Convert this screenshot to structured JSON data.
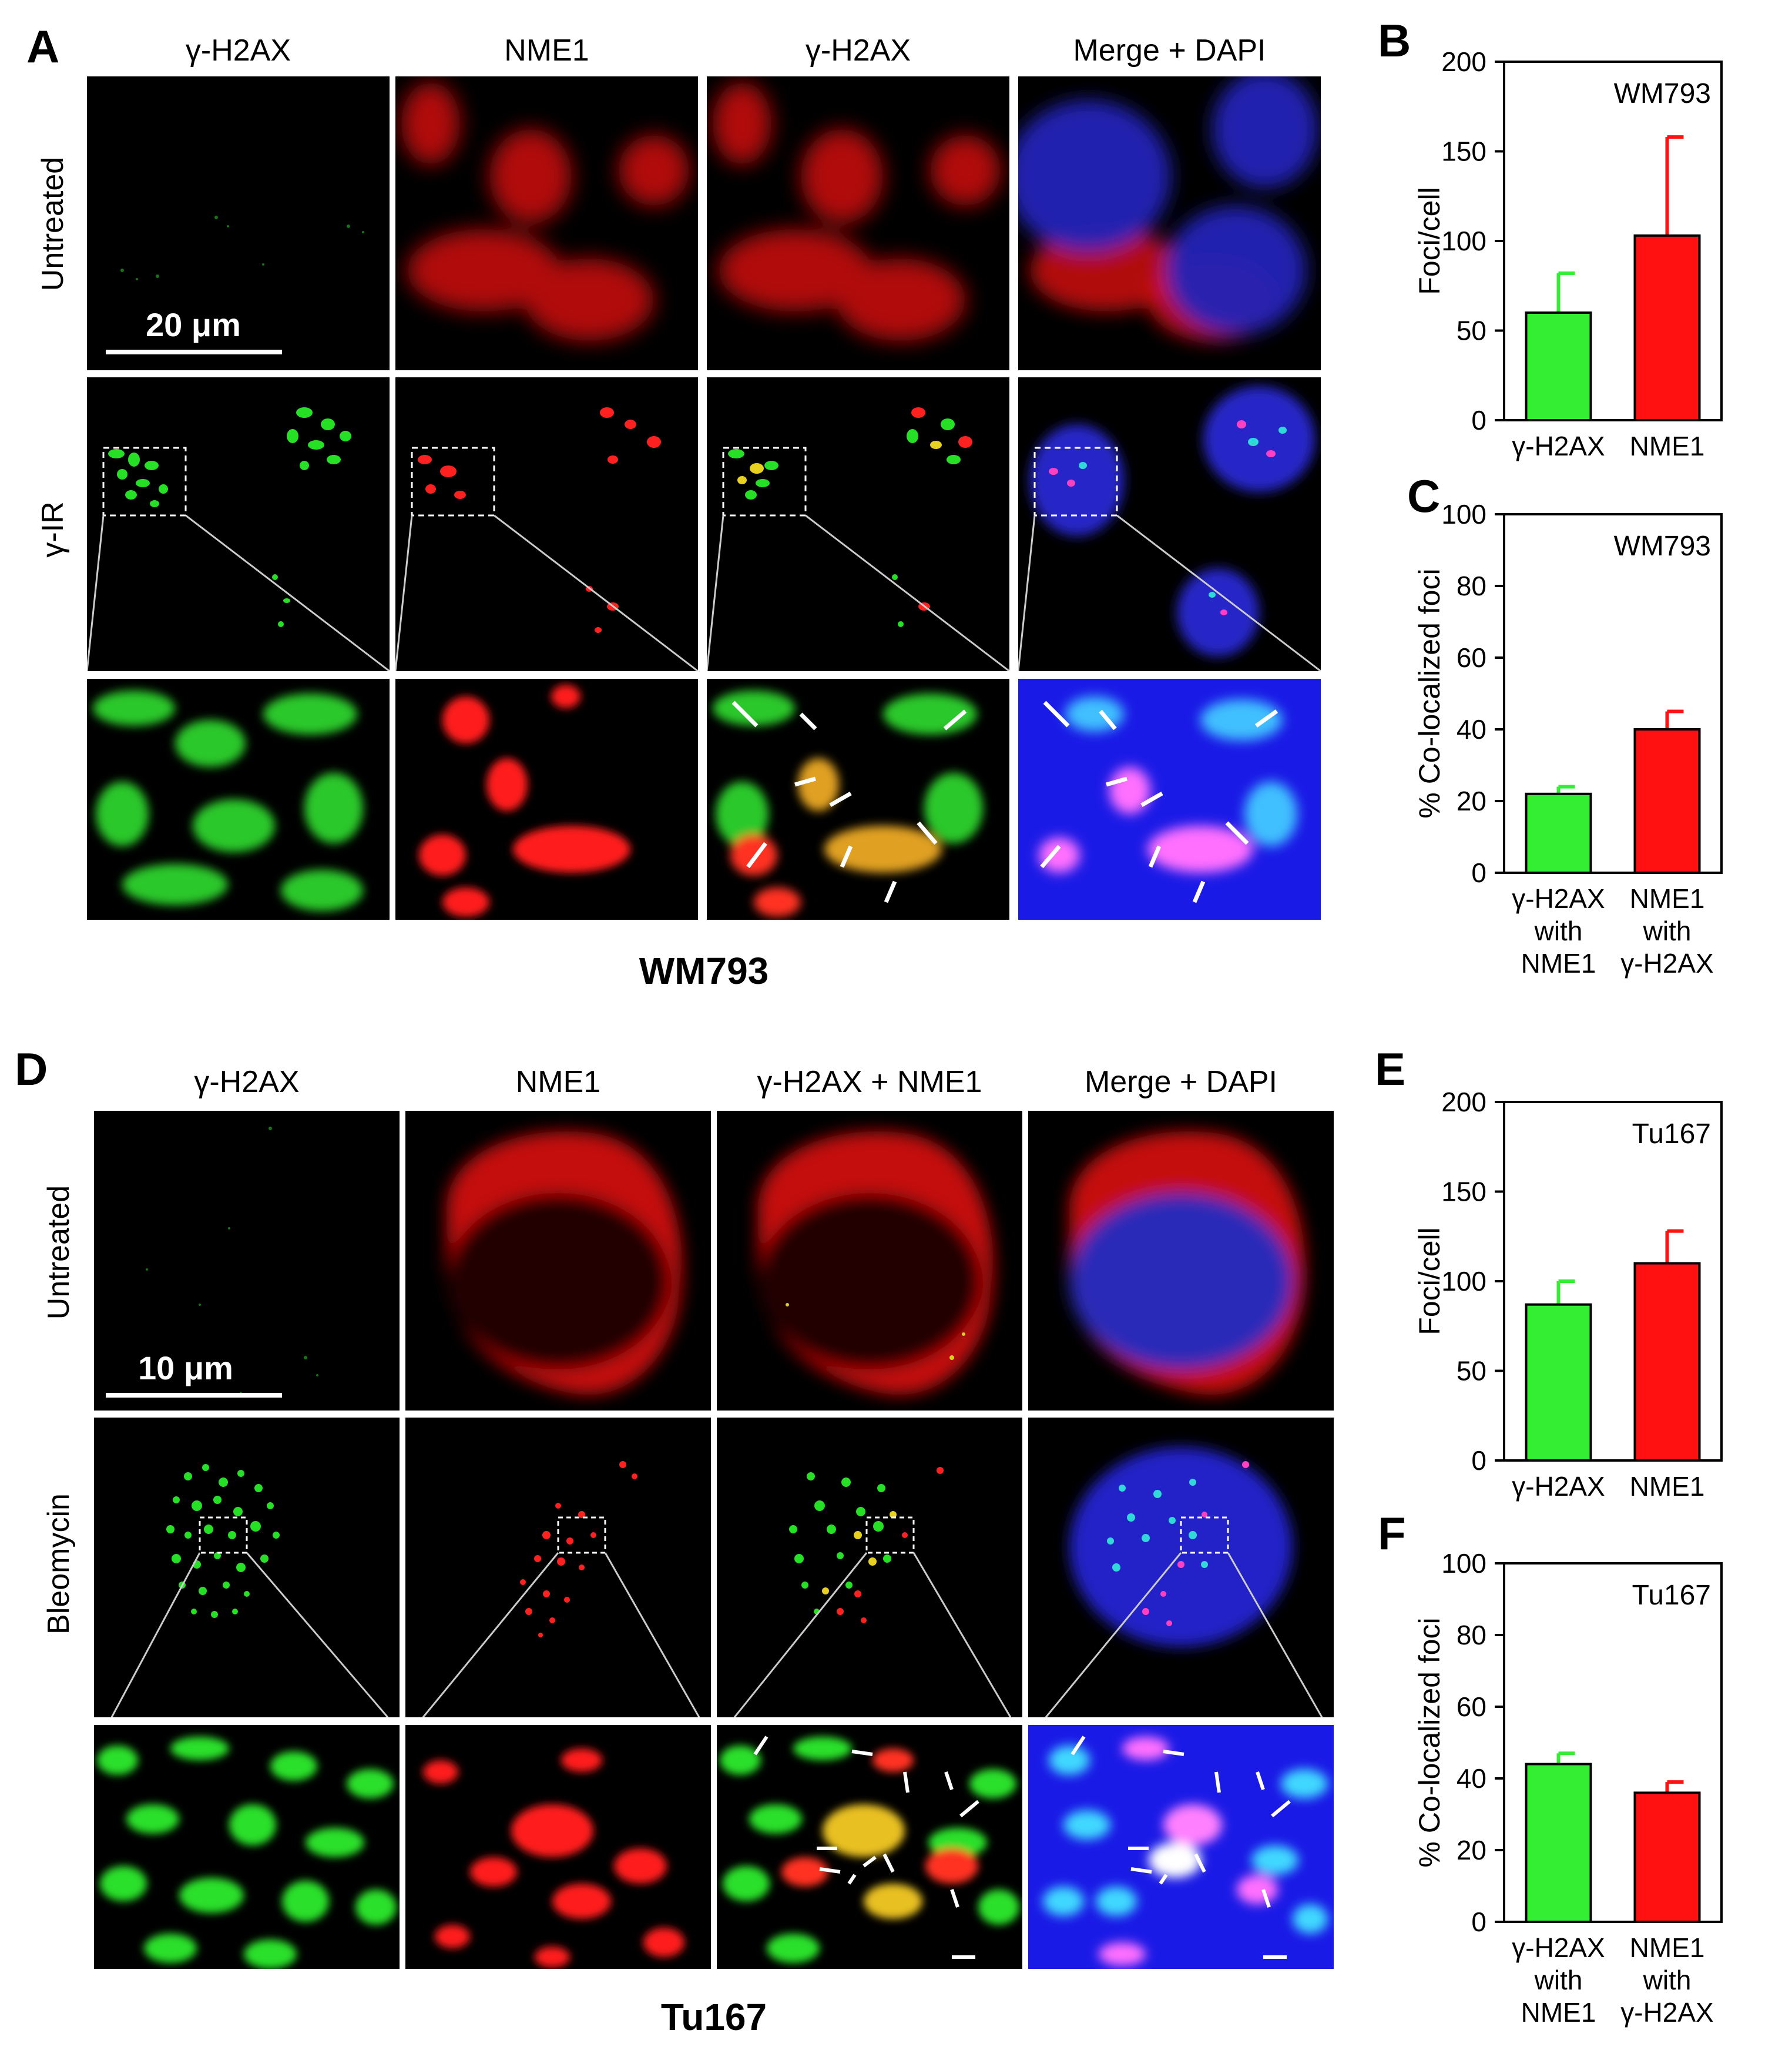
{
  "panels": {
    "A": {
      "letter": "A",
      "columns": [
        "γ-H2AX",
        "NME1",
        "γ-H2AX",
        "Merge + DAPI"
      ],
      "rows": [
        "Untreated",
        "γ-IR"
      ],
      "scale_bar": "20 μm",
      "caption": "WM793"
    },
    "D": {
      "letter": "D",
      "columns": [
        "γ-H2AX",
        "NME1",
        "γ-H2AX + NME1",
        "Merge + DAPI"
      ],
      "rows": [
        "Untreated",
        "Bleomycin"
      ],
      "scale_bar": "10  μm",
      "caption": "Tu167"
    },
    "B": {
      "letter": "B"
    },
    "C": {
      "letter": "C"
    },
    "E": {
      "letter": "E"
    },
    "F": {
      "letter": "F"
    }
  },
  "colors": {
    "green": "#22dd22",
    "red": "#ff1a1a",
    "blue": "#2a2aff",
    "bar_green": "#33ee33",
    "bar_red": "#ff1111"
  },
  "chart_data": [
    {
      "id": "B",
      "type": "bar",
      "annotation": "WM793",
      "ylabel": "Foci/cell",
      "ylim": [
        0,
        200
      ],
      "yticks": [
        0,
        50,
        100,
        150,
        200
      ],
      "categories": [
        [
          "γ-H2AX"
        ],
        [
          "NME1"
        ]
      ],
      "values": [
        60,
        103
      ],
      "errors": [
        22,
        55
      ],
      "bar_colors": [
        "#33ee33",
        "#ff1111"
      ]
    },
    {
      "id": "C",
      "type": "bar",
      "annotation": "WM793",
      "ylabel": "% Co-localized foci",
      "ylim": [
        0,
        100
      ],
      "yticks": [
        0,
        20,
        40,
        60,
        80,
        100
      ],
      "categories": [
        [
          "γ-H2AX",
          "with",
          "NME1"
        ],
        [
          "NME1",
          "with",
          "γ-H2AX"
        ]
      ],
      "values": [
        22,
        40
      ],
      "errors": [
        2,
        5
      ],
      "bar_colors": [
        "#33ee33",
        "#ff1111"
      ]
    },
    {
      "id": "E",
      "type": "bar",
      "annotation": "Tu167",
      "ylabel": "Foci/cell",
      "ylim": [
        0,
        200
      ],
      "yticks": [
        0,
        50,
        100,
        150,
        200
      ],
      "categories": [
        [
          "γ-H2AX"
        ],
        [
          "NME1"
        ]
      ],
      "values": [
        87,
        110
      ],
      "errors": [
        13,
        18
      ],
      "bar_colors": [
        "#33ee33",
        "#ff1111"
      ]
    },
    {
      "id": "F",
      "type": "bar",
      "annotation": "Tu167",
      "ylabel": "% Co-localized foci",
      "ylim": [
        0,
        100
      ],
      "yticks": [
        0,
        20,
        40,
        60,
        80,
        100
      ],
      "categories": [
        [
          "γ-H2AX",
          "with",
          "NME1"
        ],
        [
          "NME1",
          "with",
          "γ-H2AX"
        ]
      ],
      "values": [
        44,
        36
      ],
      "errors": [
        3,
        3
      ],
      "bar_colors": [
        "#33ee33",
        "#ff1111"
      ]
    }
  ]
}
